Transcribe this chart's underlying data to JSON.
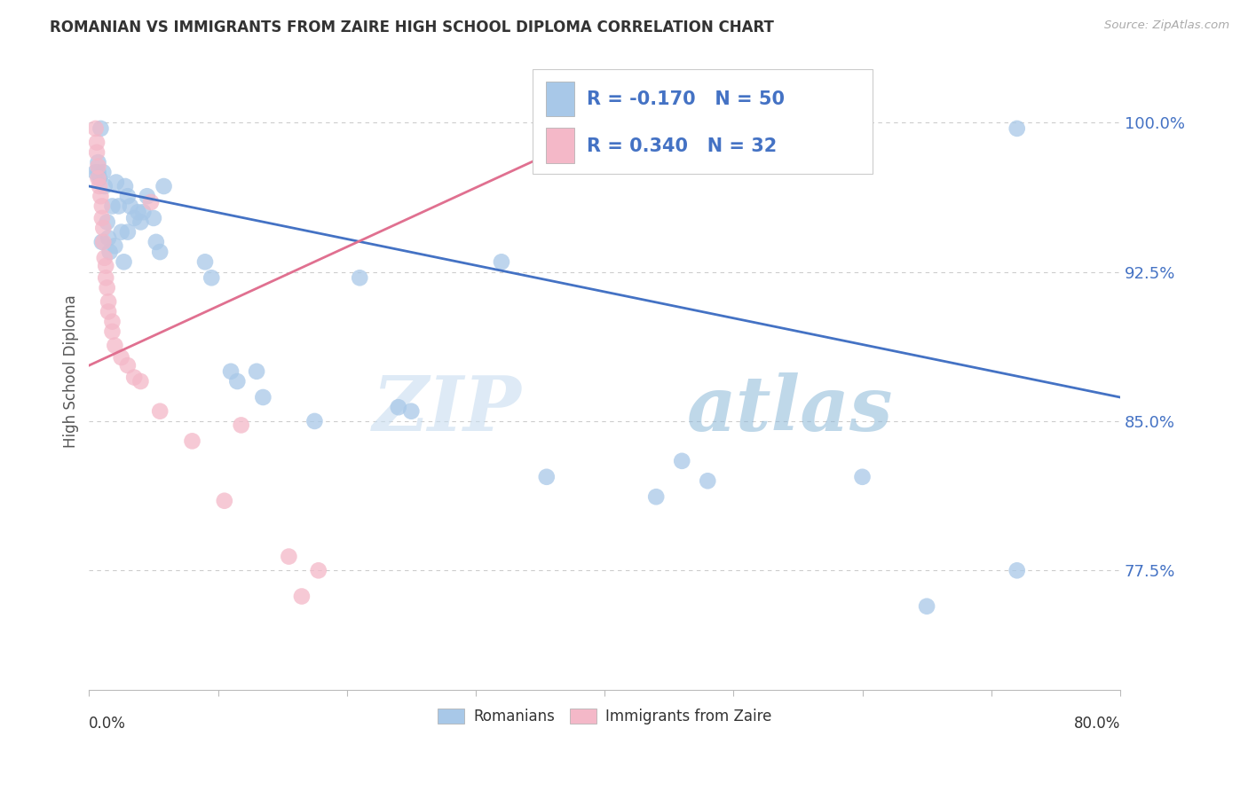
{
  "title": "ROMANIAN VS IMMIGRANTS FROM ZAIRE HIGH SCHOOL DIPLOMA CORRELATION CHART",
  "source": "Source: ZipAtlas.com",
  "ylabel": "High School Diploma",
  "ytick_labels": [
    "100.0%",
    "92.5%",
    "85.0%",
    "77.5%"
  ],
  "ytick_values": [
    1.0,
    0.925,
    0.85,
    0.775
  ],
  "xlim": [
    0.0,
    0.8
  ],
  "ylim": [
    0.715,
    1.035
  ],
  "x_axis_label_left": "0.0%",
  "x_axis_label_right": "80.0%",
  "watermark_zip": "ZIP",
  "watermark_atlas": "atlas",
  "legend_blue_r": "-0.170",
  "legend_blue_n": "50",
  "legend_pink_r": "0.340",
  "legend_pink_n": "32",
  "blue_color": "#a8c8e8",
  "pink_color": "#f4b8c8",
  "blue_line_color": "#4472c4",
  "pink_line_color": "#e07090",
  "blue_scatter": [
    [
      0.005,
      0.975
    ],
    [
      0.007,
      0.98
    ],
    [
      0.007,
      0.975
    ],
    [
      0.008,
      0.972
    ],
    [
      0.009,
      0.997
    ],
    [
      0.01,
      0.94
    ],
    [
      0.011,
      0.975
    ],
    [
      0.012,
      0.968
    ],
    [
      0.014,
      0.95
    ],
    [
      0.015,
      0.942
    ],
    [
      0.016,
      0.935
    ],
    [
      0.018,
      0.958
    ],
    [
      0.02,
      0.938
    ],
    [
      0.021,
      0.97
    ],
    [
      0.023,
      0.958
    ],
    [
      0.025,
      0.945
    ],
    [
      0.027,
      0.93
    ],
    [
      0.028,
      0.968
    ],
    [
      0.03,
      0.963
    ],
    [
      0.03,
      0.945
    ],
    [
      0.032,
      0.958
    ],
    [
      0.035,
      0.952
    ],
    [
      0.038,
      0.955
    ],
    [
      0.04,
      0.95
    ],
    [
      0.042,
      0.955
    ],
    [
      0.045,
      0.963
    ],
    [
      0.05,
      0.952
    ],
    [
      0.052,
      0.94
    ],
    [
      0.055,
      0.935
    ],
    [
      0.058,
      0.968
    ],
    [
      0.09,
      0.93
    ],
    [
      0.095,
      0.922
    ],
    [
      0.11,
      0.875
    ],
    [
      0.115,
      0.87
    ],
    [
      0.13,
      0.875
    ],
    [
      0.135,
      0.862
    ],
    [
      0.175,
      0.85
    ],
    [
      0.21,
      0.922
    ],
    [
      0.24,
      0.857
    ],
    [
      0.25,
      0.855
    ],
    [
      0.32,
      0.93
    ],
    [
      0.355,
      0.822
    ],
    [
      0.44,
      0.812
    ],
    [
      0.46,
      0.83
    ],
    [
      0.48,
      0.82
    ],
    [
      0.56,
      0.995
    ],
    [
      0.6,
      0.822
    ],
    [
      0.65,
      0.757
    ],
    [
      0.72,
      0.997
    ],
    [
      0.72,
      0.775
    ]
  ],
  "pink_scatter": [
    [
      0.005,
      0.997
    ],
    [
      0.006,
      0.99
    ],
    [
      0.006,
      0.985
    ],
    [
      0.007,
      0.978
    ],
    [
      0.007,
      0.972
    ],
    [
      0.008,
      0.968
    ],
    [
      0.009,
      0.963
    ],
    [
      0.01,
      0.958
    ],
    [
      0.01,
      0.952
    ],
    [
      0.011,
      0.947
    ],
    [
      0.011,
      0.94
    ],
    [
      0.012,
      0.932
    ],
    [
      0.013,
      0.928
    ],
    [
      0.013,
      0.922
    ],
    [
      0.014,
      0.917
    ],
    [
      0.015,
      0.91
    ],
    [
      0.015,
      0.905
    ],
    [
      0.018,
      0.9
    ],
    [
      0.018,
      0.895
    ],
    [
      0.02,
      0.888
    ],
    [
      0.025,
      0.882
    ],
    [
      0.03,
      0.878
    ],
    [
      0.035,
      0.872
    ],
    [
      0.04,
      0.87
    ],
    [
      0.048,
      0.96
    ],
    [
      0.055,
      0.855
    ],
    [
      0.08,
      0.84
    ],
    [
      0.105,
      0.81
    ],
    [
      0.118,
      0.848
    ],
    [
      0.155,
      0.782
    ],
    [
      0.165,
      0.762
    ],
    [
      0.178,
      0.775
    ]
  ],
  "blue_trendline_x": [
    0.0,
    0.8
  ],
  "blue_trendline_y": [
    0.968,
    0.862
  ],
  "pink_trendline_x": [
    0.0,
    0.42
  ],
  "pink_trendline_y": [
    0.878,
    1.003
  ]
}
